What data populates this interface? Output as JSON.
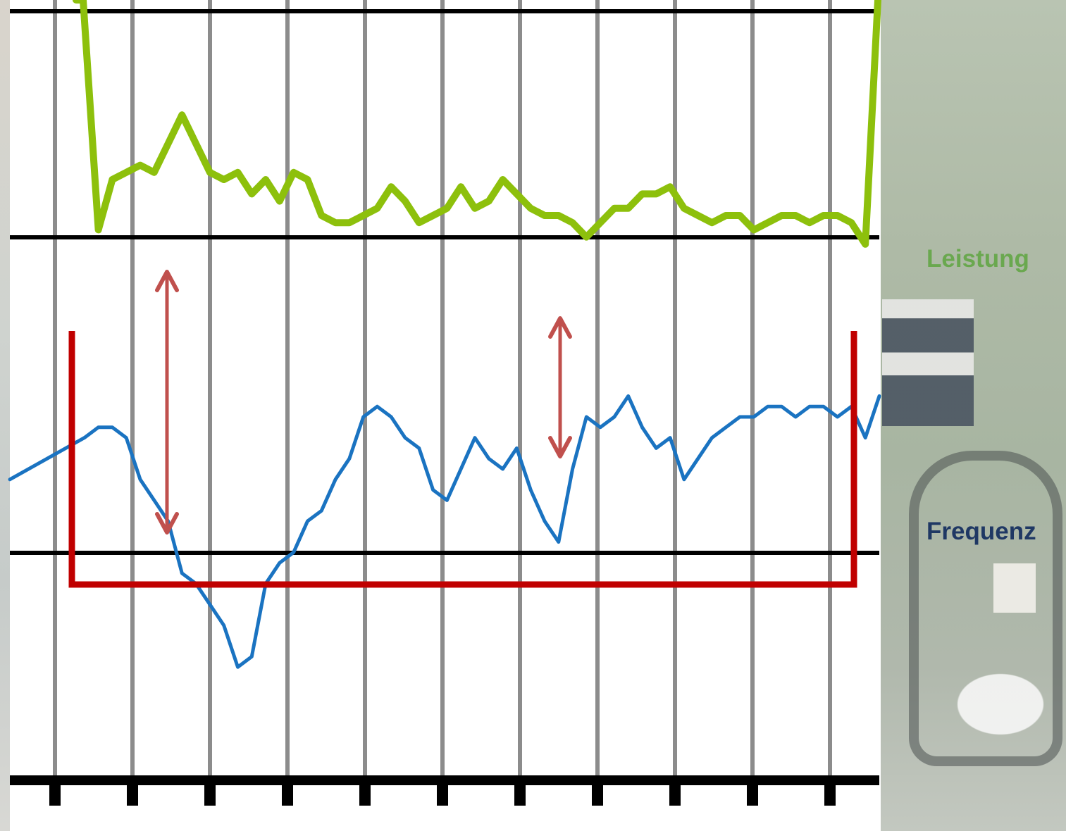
{
  "chart_data": {
    "type": "line",
    "title": "",
    "xlabel": "",
    "ylabel": "",
    "x_ticks": 11,
    "grid": true,
    "y_reference_lines": [
      "upper",
      "middle",
      "lower"
    ],
    "series": [
      {
        "name": "Leistung",
        "color": "#8dc00c",
        "axis_range": [
          0,
          100
        ],
        "values": [
          100,
          100,
          68,
          75,
          76,
          77,
          76,
          80,
          84,
          80,
          76,
          75,
          76,
          73,
          75,
          72,
          76,
          75,
          70,
          69,
          69,
          70,
          71,
          74,
          72,
          69,
          70,
          71,
          74,
          71,
          72,
          75,
          73,
          71,
          70,
          70,
          69,
          67,
          69,
          71,
          71,
          73,
          73,
          74,
          71,
          70,
          69,
          70,
          70,
          68,
          69,
          70,
          70,
          69,
          70,
          70,
          69,
          66,
          100
        ]
      },
      {
        "name": "Frequenz",
        "color": "#1a73c1",
        "axis_range": [
          0,
          100
        ],
        "values": [
          54,
          58,
          59,
          59,
          58,
          54,
          52,
          50,
          45,
          44,
          42,
          40,
          36,
          37,
          44,
          46,
          47,
          50,
          51,
          54,
          56,
          60,
          61,
          60,
          58,
          57,
          53,
          52,
          55,
          58,
          56,
          55,
          57,
          53,
          50,
          48,
          55,
          60,
          59,
          60,
          62,
          59,
          57,
          58,
          54,
          56,
          58,
          59,
          60,
          60,
          61,
          61,
          60,
          61,
          61,
          60,
          61,
          58,
          62
        ]
      },
      {
        "name": "threshold",
        "color": "#c00000",
        "axis_range": [
          0,
          100
        ],
        "values": [
          50,
          50,
          50,
          50,
          50,
          50,
          50,
          50,
          50,
          50,
          50,
          50,
          50,
          50,
          50,
          50,
          50,
          50,
          50,
          50,
          50,
          50,
          50,
          50,
          50,
          50,
          50,
          50,
          50,
          50,
          50,
          50,
          50,
          50,
          50,
          50,
          50,
          50,
          50,
          50,
          50,
          50,
          50,
          50,
          50,
          50,
          50,
          50,
          50,
          50,
          50,
          50,
          50,
          50,
          50,
          50,
          50,
          50,
          50
        ]
      }
    ],
    "annotations": [
      "double-arrow",
      "double-arrow"
    ]
  },
  "labels": {
    "leistung": "Leistung",
    "frequenz": "Frequenz"
  },
  "colors": {
    "grid_vertical": "#8c8c8c",
    "reference_line": "#000000",
    "arrow": "#c0504d",
    "leistung_label": "#6aa84f",
    "frequenz_label": "#1f3864"
  }
}
